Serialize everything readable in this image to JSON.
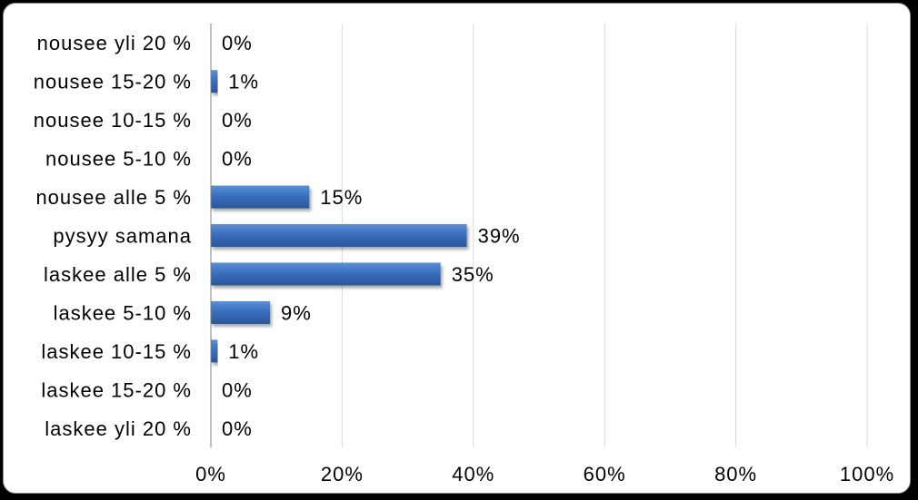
{
  "chart_data": {
    "type": "bar",
    "orientation": "horizontal",
    "categories": [
      "nousee yli 20 %",
      "nousee 15-20 %",
      "nousee 10-15 %",
      "nousee 5-10 %",
      "nousee alle 5 %",
      "pysyy samana",
      "laskee alle 5 %",
      "laskee 5-10 %",
      "laskee 10-15 %",
      "laskee 15-20 %",
      "laskee yli 20 %"
    ],
    "values": [
      0,
      1,
      0,
      0,
      15,
      39,
      35,
      9,
      1,
      0,
      0
    ],
    "value_labels": [
      "0%",
      "1%",
      "0%",
      "0%",
      "15%",
      "39%",
      "35%",
      "9%",
      "1%",
      "0%",
      "0%"
    ],
    "x_ticks": [
      0,
      20,
      40,
      60,
      80,
      100
    ],
    "x_tick_labels": [
      "0%",
      "20%",
      "40%",
      "60%",
      "80%",
      "100%"
    ],
    "xlim": [
      0,
      100
    ],
    "grid": true,
    "legend": "none",
    "bar_color": "#3a6fbe",
    "gridline_color": "#d9d9d9",
    "axis_color": "#808080"
  }
}
